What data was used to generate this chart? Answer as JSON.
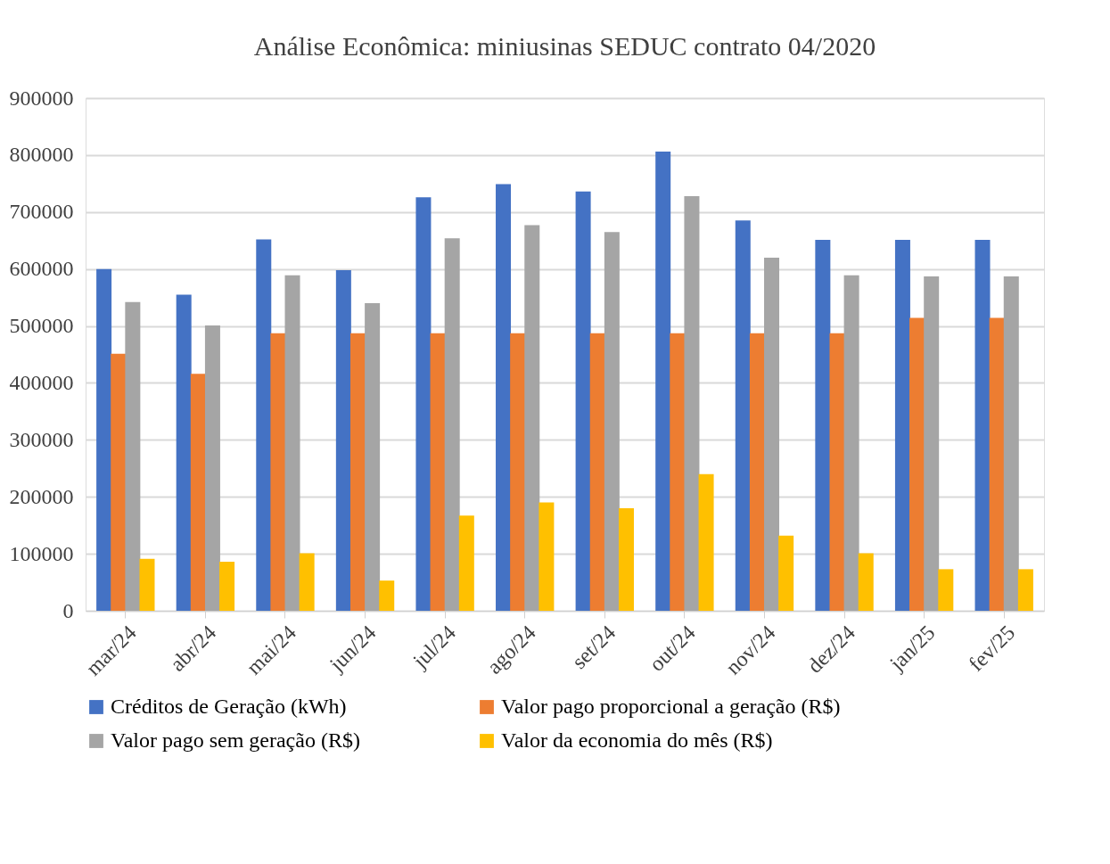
{
  "chart_data": {
    "type": "bar",
    "title": "Análise Econômica: miniusinas SEDUC contrato 04/2020",
    "categories": [
      "mar/24",
      "abr/24",
      "mai/24",
      "jun/24",
      "jul/24",
      "ago/24",
      "set/24",
      "out/24",
      "nov/24",
      "dez/24",
      "jan/25",
      "fev/25"
    ],
    "series": [
      {
        "name": "Créditos de Geração (kWh)",
        "color": "#4472c4",
        "values": [
          600000,
          555000,
          652000,
          598000,
          726000,
          749000,
          736000,
          806000,
          685000,
          651000,
          651000,
          651000
        ]
      },
      {
        "name": "Valor pago proporcional a geração (R$)",
        "color": "#ed7d31",
        "values": [
          451000,
          416000,
          487000,
          487000,
          487000,
          487000,
          487000,
          487000,
          487000,
          487000,
          514000,
          514000
        ]
      },
      {
        "name": "Valor pago sem geração (R$)",
        "color": "#a5a5a5",
        "values": [
          542000,
          501000,
          589000,
          540000,
          654000,
          677000,
          665000,
          728000,
          620000,
          589000,
          587000,
          587000
        ]
      },
      {
        "name": "Valor da economia do mês (R$)",
        "color": "#ffc000",
        "values": [
          91000,
          86000,
          101000,
          53000,
          167000,
          190000,
          180000,
          240000,
          132000,
          101000,
          73000,
          73000
        ]
      }
    ],
    "ylim": [
      0,
      900000
    ],
    "yticks": [
      0,
      100000,
      200000,
      300000,
      400000,
      500000,
      600000,
      700000,
      800000,
      900000
    ],
    "grid": "y",
    "legend": "bottom"
  }
}
